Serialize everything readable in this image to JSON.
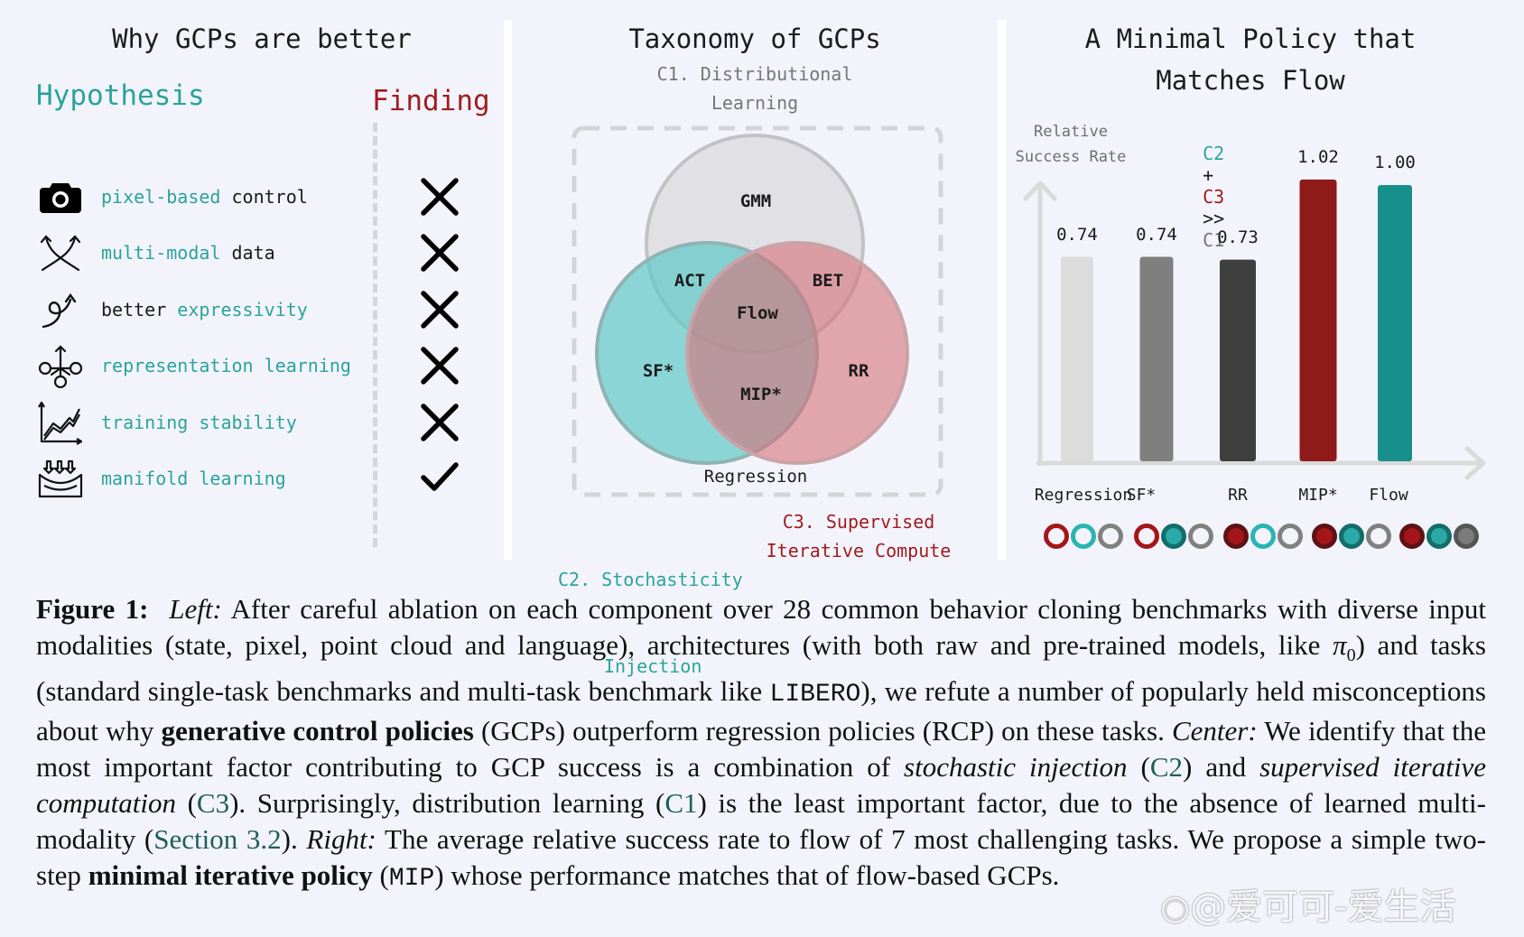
{
  "left_panel": {
    "title": "Why GCPs are better",
    "hypothesis_header": "Hypothesis",
    "finding_header": "Finding",
    "rows": [
      {
        "icon": "camera-icon",
        "parts": [
          {
            "text": "pixel-based",
            "accent": true
          },
          {
            "text": " control",
            "accent": false
          }
        ],
        "finding": "cross"
      },
      {
        "icon": "crossing-arrows-icon",
        "parts": [
          {
            "text": "multi-modal",
            "accent": true
          },
          {
            "text": " data",
            "accent": false
          }
        ],
        "finding": "cross"
      },
      {
        "icon": "loop-arrow-icon",
        "parts": [
          {
            "text": "better ",
            "accent": false
          },
          {
            "text": "expressivity",
            "accent": true
          }
        ],
        "finding": "cross"
      },
      {
        "icon": "network-nodes-icon",
        "parts": [
          {
            "text": "representation learning",
            "accent": true
          }
        ],
        "finding": "cross"
      },
      {
        "icon": "line-chart-icon",
        "parts": [
          {
            "text": "training stability",
            "accent": true
          }
        ],
        "finding": "cross"
      },
      {
        "icon": "manifold-icon",
        "parts": [
          {
            "text": "manifold learning",
            "accent": true
          }
        ],
        "finding": "check"
      }
    ]
  },
  "center_panel": {
    "title": "Taxonomy of GCPs",
    "c1_label_line1": "C1. Distributional",
    "c1_label_line2": "Learning",
    "c2_label_line1": "C2. Stochasticity",
    "c2_label_line2": "Injection",
    "c3_label_line1": "C3. Supervised",
    "c3_label_line2": "Iterative Compute",
    "regions": {
      "gmm": "GMM",
      "act": "ACT",
      "bet": "BET",
      "flow": "Flow",
      "sf": "SF*",
      "rr": "RR",
      "mip": "MIP*",
      "regression": "Regression"
    }
  },
  "right_panel": {
    "title_line1": "A Minimal Policy that",
    "title_line2": "Matches Flow",
    "ylabel_line1": "Relative",
    "ylabel_line2": "Success Rate",
    "formula": {
      "c2": "C2",
      "plus": "+",
      "c3": "C3",
      "gg": ">>",
      "c1": "C1"
    }
  },
  "chart_data": {
    "type": "bar",
    "title": "A Minimal Policy that Matches Flow",
    "xlabel": "",
    "ylabel": "Relative Success Rate",
    "annotation": "C2 + C3 >> C1",
    "categories": [
      "Regression",
      "SF*",
      "RR",
      "MIP*",
      "Flow"
    ],
    "values": [
      0.74,
      0.74,
      0.73,
      1.02,
      1.0
    ],
    "value_labels": [
      "0.74",
      "0.74",
      "0.73",
      "1.02",
      "1.00"
    ],
    "colors": [
      "#dcdcdc",
      "#7f7f7f",
      "#3f3f3f",
      "#8f1a1a",
      "#178f8a"
    ],
    "ylim": [
      0,
      1.1
    ],
    "grid": false,
    "component_markers": {
      "order": [
        "C3",
        "C2",
        "C1"
      ],
      "present": [
        [
          false,
          false,
          false
        ],
        [
          false,
          true,
          false
        ],
        [
          true,
          false,
          false
        ],
        [
          true,
          true,
          false
        ],
        [
          true,
          true,
          true
        ]
      ]
    }
  },
  "caption": {
    "figure_label": "Figure 1:",
    "segments": [
      {
        "t": "i",
        "v": "Left:"
      },
      {
        "t": "n",
        "v": " After careful ablation on each component over 28 common behavior cloning benchmarks with diverse input modalities (state, pixel, point cloud and language), architectures (with both raw and pre-trained models, like "
      },
      {
        "t": "math",
        "v": "π",
        "sub": "0"
      },
      {
        "t": "n",
        "v": ") and tasks (standard single-task benchmarks and multi-task benchmark like "
      },
      {
        "t": "tt",
        "v": "LIBERO"
      },
      {
        "t": "n",
        "v": "), we refute a number of popularly held misconceptions about why "
      },
      {
        "t": "b",
        "v": "generative control policies"
      },
      {
        "t": "n",
        "v": " (GCPs) outperform regression policies (RCP) on these tasks.  "
      },
      {
        "t": "i",
        "v": "Center:"
      },
      {
        "t": "n",
        "v": " We identify that the most important factor contributing to GCP success is a combination of "
      },
      {
        "t": "i",
        "v": "stochastic injection"
      },
      {
        "t": "n",
        "v": " ("
      },
      {
        "t": "ref",
        "v": "C2"
      },
      {
        "t": "n",
        "v": ") and "
      },
      {
        "t": "i",
        "v": "supervised iterative computation"
      },
      {
        "t": "n",
        "v": " ("
      },
      {
        "t": "ref",
        "v": "C3"
      },
      {
        "t": "n",
        "v": "). Surprisingly, distribution learning ("
      },
      {
        "t": "ref",
        "v": "C1"
      },
      {
        "t": "n",
        "v": ") is the least important factor, due to the absence of learned multi-modality ("
      },
      {
        "t": "ref",
        "v": "Section 3.2"
      },
      {
        "t": "n",
        "v": "). "
      },
      {
        "t": "i",
        "v": "Right:"
      },
      {
        "t": "n",
        "v": " The average relative success rate to flow of 7 most challenging tasks. We propose a simple two-step "
      },
      {
        "t": "b",
        "v": "minimal iterative policy"
      },
      {
        "t": "n",
        "v": " ("
      },
      {
        "t": "tt",
        "v": "MIP"
      },
      {
        "t": "n",
        "v": ") whose performance matches that of flow-based GCPs."
      }
    ]
  },
  "watermark": "@爱可可-爱生活",
  "colors": {
    "teal": "#2aa39b",
    "red": "#a01c1f",
    "background": "#f3f4fb"
  }
}
